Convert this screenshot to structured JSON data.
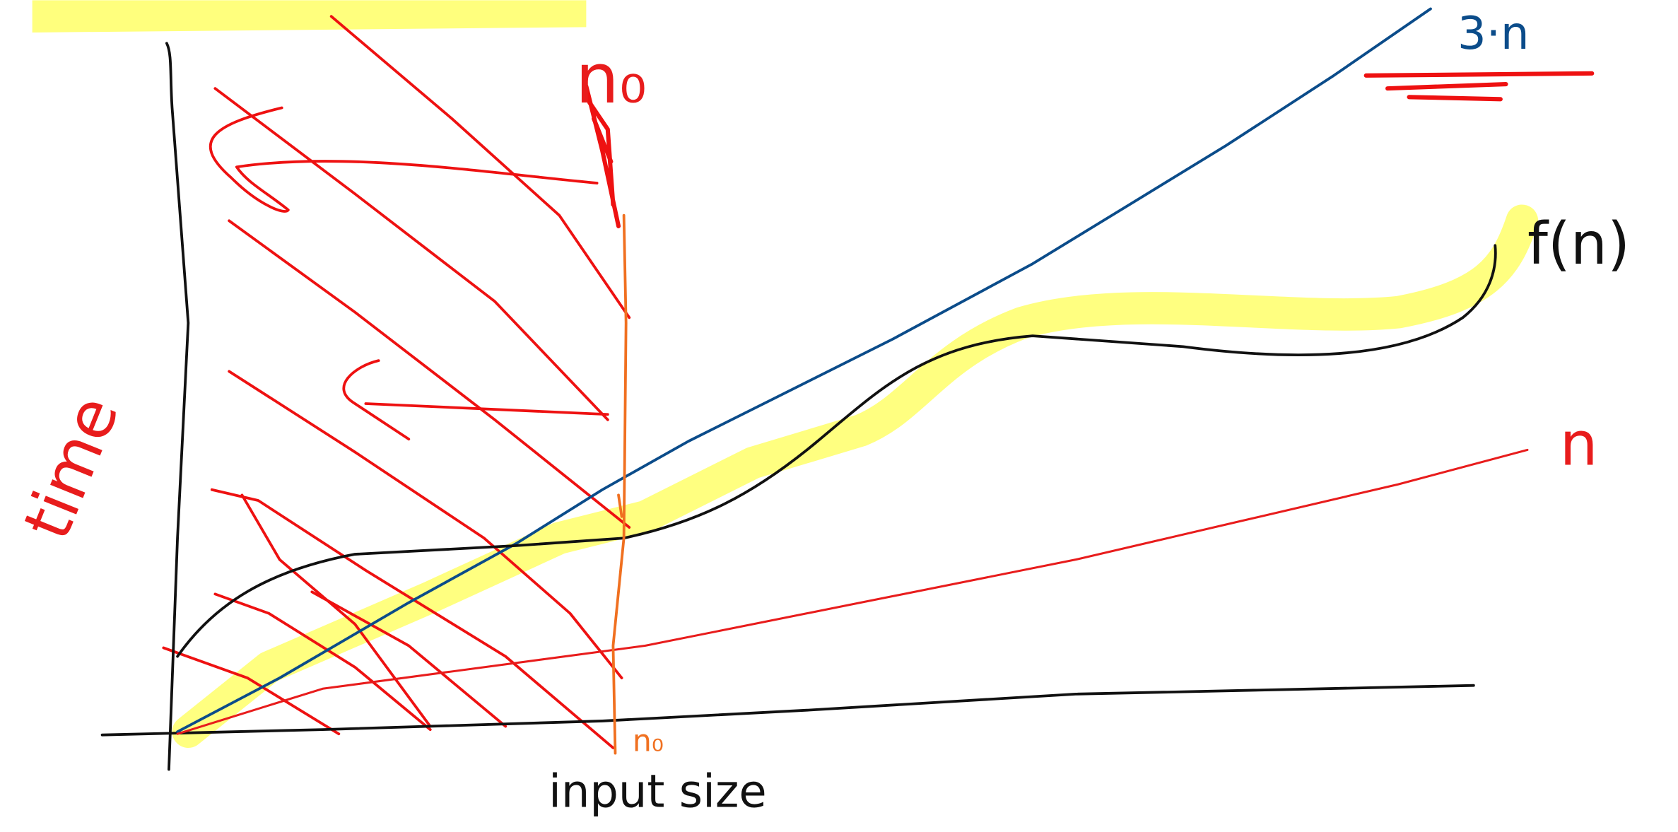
{
  "curves": [
    {
      "label": "3·n"
    },
    {
      "label": "f(n)"
    },
    {
      "label": "n"
    }
  ],
  "axes": {
    "y_label": "time",
    "x_label": "input size"
  },
  "markers": {
    "n0_top": "n₀",
    "n0_bottom": "n₀"
  }
}
